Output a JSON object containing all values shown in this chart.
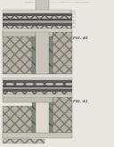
{
  "bg_color": "#e8e6e0",
  "header_text": "Patent Application Publication   Jul. 13, 2010  Sheet 17 of 24   US 2010/0171197 A1",
  "fig40_label": "FIG. 40",
  "fig41_label": "FIG. 41",
  "crosshatch_color": "#b8b0a0",
  "crosshatch_color2": "#c8c2b5",
  "layer_dark": "#585858",
  "layer_mid": "#909080",
  "layer_light": "#d0ccc0",
  "layer_white": "#e8e6e0",
  "trench_bg": "#e0dcd4",
  "trench_wall": "#787060",
  "via_wall_hatch": "#909088",
  "label_color": "#555555",
  "line_color": "#666666",
  "text_color": "#444444"
}
